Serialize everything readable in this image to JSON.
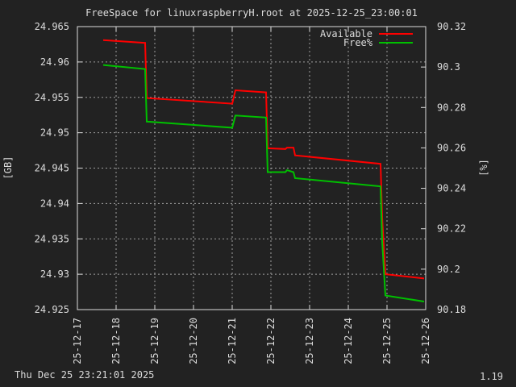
{
  "chart_data": {
    "type": "line",
    "title": "FreeSpace for linuxraspberryH.root  at 2025-12-25_23:00:01",
    "ylabel": "[GB]",
    "y2label": "[%]",
    "xlim": [
      "25-12-17",
      "25-12-26"
    ],
    "x_ticks": [
      "25-12-17",
      "25-12-18",
      "25-12-19",
      "25-12-20",
      "25-12-21",
      "25-12-22",
      "25-12-23",
      "25-12-24",
      "25-12-25",
      "25-12-26"
    ],
    "ylim": [
      24.925,
      24.965
    ],
    "y_ticks": [
      "24.965",
      "24.96",
      "24.955",
      "24.95",
      "24.945",
      "24.94",
      "24.935",
      "24.93",
      "24.925"
    ],
    "y2lim": [
      90.18,
      90.32
    ],
    "y2_ticks": [
      "90.32",
      "90.3",
      "90.28",
      "90.26",
      "90.24",
      "90.22",
      "90.2",
      "90.18"
    ],
    "grid": true,
    "legend_position": "top-right",
    "series": [
      {
        "name": "Available",
        "axis": "y",
        "color": "#ff0000",
        "points": [
          [
            "2025-12-17 16:00",
            24.9631
          ],
          [
            "2025-12-18 18:00",
            24.9627
          ],
          [
            "2025-12-18 19:00",
            24.9549
          ],
          [
            "2025-12-21 00:00",
            24.9541
          ],
          [
            "2025-12-21 02:00",
            24.956
          ],
          [
            "2025-12-21 21:00",
            24.9557
          ],
          [
            "2025-12-21 22:00",
            24.9478
          ],
          [
            "2025-12-22 09:00",
            24.9477
          ],
          [
            "2025-12-22 10:00",
            24.9479
          ],
          [
            "2025-12-22 14:00",
            24.9479
          ],
          [
            "2025-12-22 15:00",
            24.9468
          ],
          [
            "2025-12-24 20:00",
            24.9456
          ],
          [
            "2025-12-24 21:00",
            24.938
          ],
          [
            "2025-12-24 23:00",
            24.93
          ],
          [
            "2025-12-25 23:00",
            24.9294
          ]
        ]
      },
      {
        "name": "Free%",
        "axis": "y2",
        "color": "#00c000",
        "points": [
          [
            "2025-12-17 16:00",
            90.301
          ],
          [
            "2025-12-18 18:00",
            90.299
          ],
          [
            "2025-12-18 19:00",
            90.273
          ],
          [
            "2025-12-21 00:00",
            90.27
          ],
          [
            "2025-12-21 02:00",
            90.276
          ],
          [
            "2025-12-21 21:00",
            90.275
          ],
          [
            "2025-12-21 22:00",
            90.248
          ],
          [
            "2025-12-22 09:00",
            90.248
          ],
          [
            "2025-12-22 10:00",
            90.249
          ],
          [
            "2025-12-22 14:00",
            90.248
          ],
          [
            "2025-12-22 15:00",
            90.245
          ],
          [
            "2025-12-24 20:00",
            90.241
          ],
          [
            "2025-12-24 21:00",
            90.214
          ],
          [
            "2025-12-24 23:00",
            90.187
          ],
          [
            "2025-12-25 23:00",
            90.184
          ]
        ]
      }
    ]
  },
  "footer": {
    "timestamp": "Thu Dec 25 23:21:01 2025",
    "version": "1.19"
  }
}
